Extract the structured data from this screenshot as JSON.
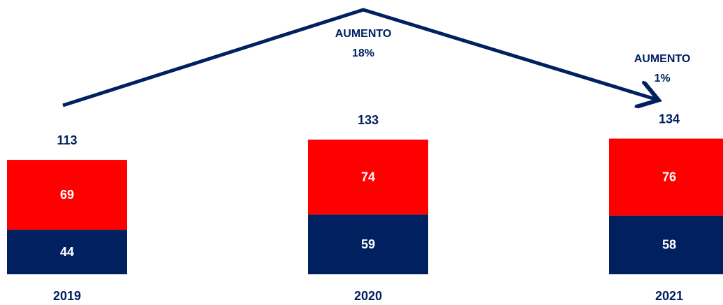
{
  "chart_data": {
    "type": "stacked-bar",
    "categories": [
      "2019",
      "2020",
      "2021"
    ],
    "series": [
      {
        "color": "#002060",
        "values": [
          44,
          59,
          58
        ]
      },
      {
        "color": "#ff0000",
        "values": [
          69,
          74,
          76
        ]
      }
    ],
    "totals": [
      113,
      133,
      134
    ],
    "annotations": [
      {
        "lines": [
          "AUMENTO",
          "18%"
        ]
      },
      {
        "lines": [
          "AUMENTO",
          "1%"
        ]
      }
    ]
  }
}
